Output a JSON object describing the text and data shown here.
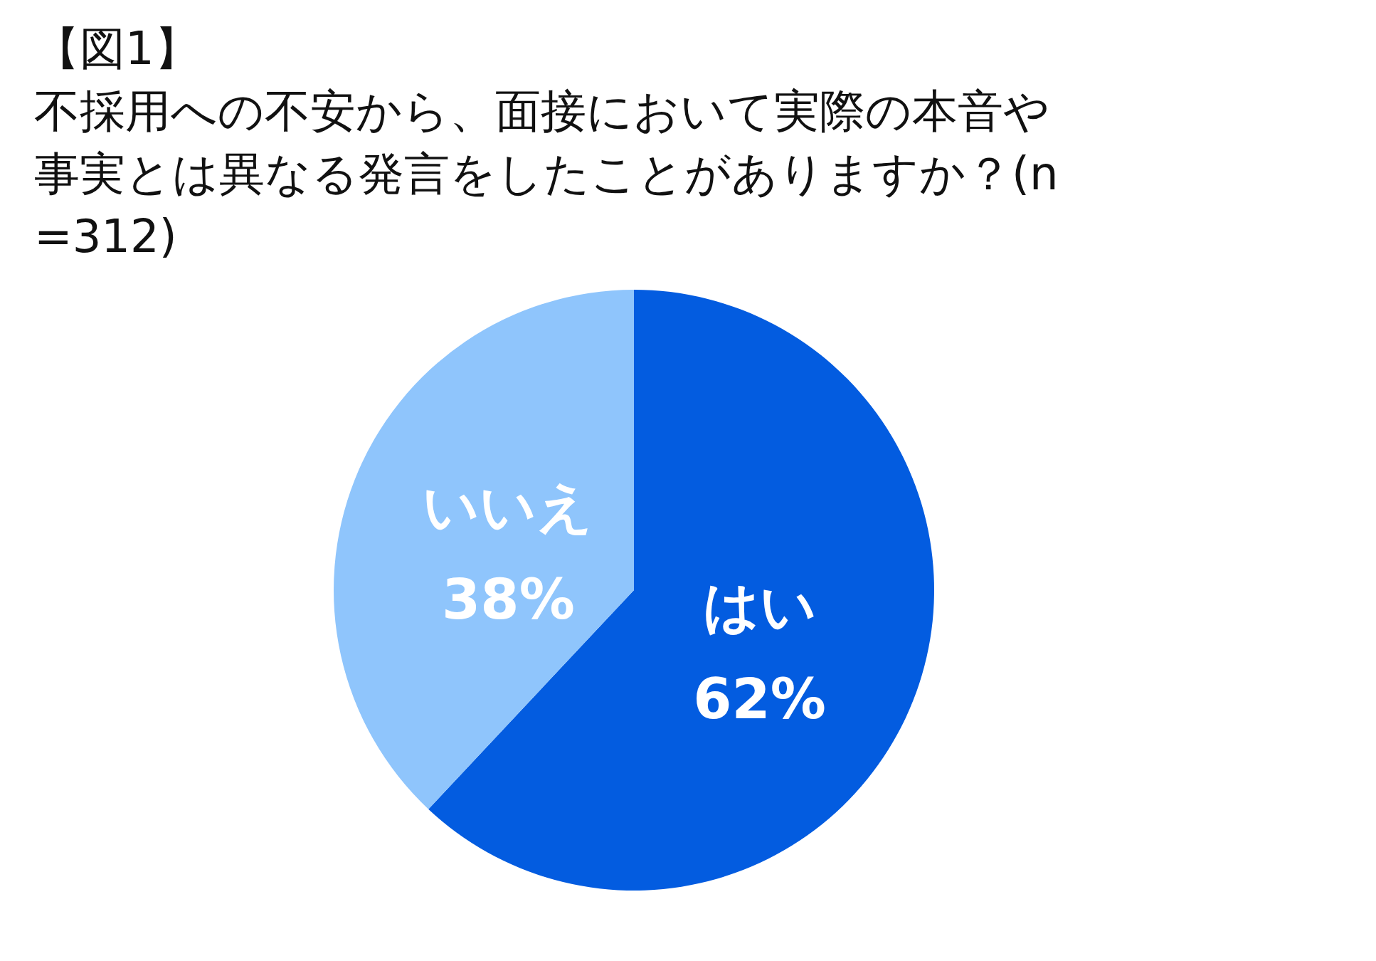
{
  "chart_data": {
    "type": "pie",
    "title": "【図1】",
    "subtitle": "不採用への不安から、面接において実際の本音や事実とは異なる発言をしたことがありますか？(n=312)",
    "categories": [
      "はい",
      "いいえ"
    ],
    "values": [
      62,
      38
    ],
    "colors": [
      "#035ce0",
      "#8fc5fc"
    ],
    "value_labels": [
      "62%",
      "38%"
    ]
  }
}
